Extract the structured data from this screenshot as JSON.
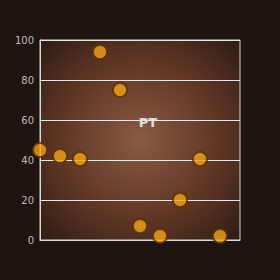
{
  "chart_data": {
    "type": "scatter",
    "x": [
      30,
      40,
      0,
      10,
      20,
      80,
      70,
      50,
      60,
      90
    ],
    "values": [
      94,
      75,
      45,
      42,
      40.5,
      40.5,
      20,
      7,
      2,
      2
    ],
    "color": "#f2a21c",
    "marker": "circle",
    "xlim": [
      0,
      100
    ],
    "ylim": [
      0,
      100
    ],
    "yticks": [
      0,
      20,
      40,
      60,
      80,
      100
    ],
    "grid": true,
    "tick_labels": "y",
    "annotations": [
      {
        "text": "PT",
        "x": 54,
        "y": 59
      }
    ]
  }
}
